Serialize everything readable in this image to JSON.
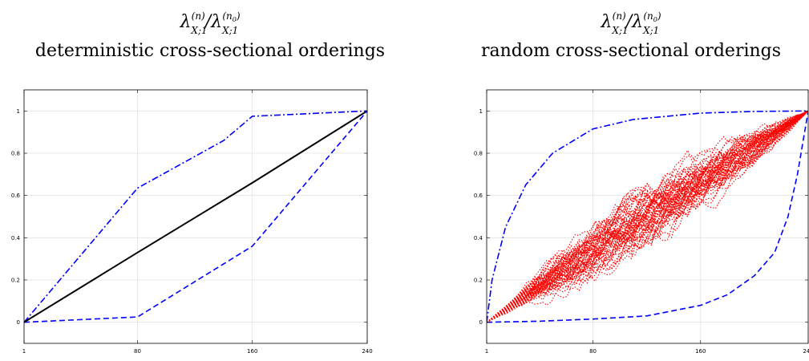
{
  "chart_data": [
    {
      "type": "line",
      "title": "λ(n)X;1/λ(n0)X;1",
      "subtitle": "deterministic cross-sectional orderings",
      "xlabel": "",
      "ylabel": "",
      "xlim": [
        1,
        240
      ],
      "ylim": [
        -0.1,
        1.1
      ],
      "x_ticks": [
        "1",
        "80",
        "160",
        "240"
      ],
      "y_ticks": [
        "0",
        "0.2",
        "0.4",
        "0.6",
        "0.8",
        "1"
      ],
      "grid": true,
      "series": [
        {
          "style": "dash-dot",
          "color": "#0000ff",
          "x": [
            1,
            80,
            140,
            160,
            240
          ],
          "y": [
            0,
            0.635,
            0.86,
            0.975,
            1
          ]
        },
        {
          "style": "solid",
          "color": "#000000",
          "x": [
            1,
            80,
            160,
            240
          ],
          "y": [
            0,
            0.33,
            0.66,
            1
          ]
        },
        {
          "style": "dashed",
          "color": "#0000ff",
          "x": [
            1,
            80,
            160,
            240
          ],
          "y": [
            0,
            0.025,
            0.36,
            1
          ]
        }
      ]
    },
    {
      "type": "line",
      "title": "λ(n)X;1/λ(n0)X;1",
      "subtitle": "random cross-sectional orderings",
      "xlabel": "",
      "ylabel": "",
      "xlim": [
        1,
        240
      ],
      "ylim": [
        -0.1,
        1.1
      ],
      "x_ticks": [
        "1",
        "80",
        "160",
        "240"
      ],
      "y_ticks": [
        "0",
        "0.2",
        "0.4",
        "0.6",
        "0.8",
        "1"
      ],
      "grid": true,
      "series": [
        {
          "style": "dash-dot",
          "color": "#0000ff",
          "x": [
            1,
            5,
            15,
            30,
            50,
            80,
            110,
            160,
            200,
            240
          ],
          "y": [
            0,
            0.2,
            0.45,
            0.65,
            0.8,
            0.915,
            0.96,
            0.99,
            0.998,
            1
          ]
        },
        {
          "style": "dashed",
          "color": "#0000ff",
          "x": [
            1,
            40,
            80,
            120,
            160,
            180,
            200,
            215,
            225,
            232,
            240
          ],
          "y": [
            0,
            0.005,
            0.015,
            0.03,
            0.08,
            0.13,
            0.22,
            0.33,
            0.5,
            0.7,
            1
          ]
        },
        {
          "style": "dotted",
          "color": "#ff0000",
          "name": "",
          "x": [
            1,
            240
          ],
          "y": [
            0,
            1
          ],
          "band_halfwidth": 0.12,
          "count": 60
        }
      ]
    }
  ]
}
